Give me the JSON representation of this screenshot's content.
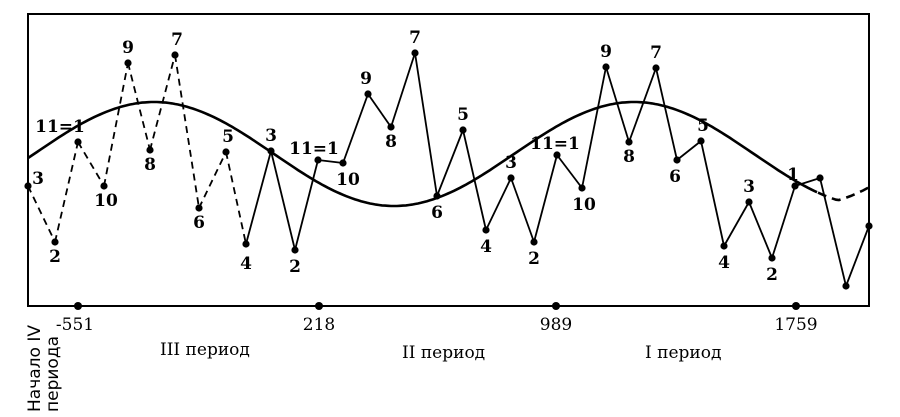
{
  "chart_data": {
    "type": "line",
    "x_ticks": [
      "-551",
      "218",
      "989",
      "1759"
    ],
    "start_label": [
      "Начало IV",
      "периода"
    ],
    "periods": [
      "III период",
      "II период",
      "I период"
    ],
    "points": [
      {
        "label": "3",
        "style": "dashed"
      },
      {
        "label": "2",
        "style": "dashed"
      },
      {
        "label": "11=1",
        "style": "dashed"
      },
      {
        "label": "10",
        "style": "dashed"
      },
      {
        "label": "9",
        "style": "dashed"
      },
      {
        "label": "8",
        "style": "dashed"
      },
      {
        "label": "7",
        "style": "dashed"
      },
      {
        "label": "6",
        "style": "dashed"
      },
      {
        "label": "5",
        "style": "dashed"
      },
      {
        "label": "4",
        "style": "solid"
      },
      {
        "label": "3",
        "style": "solid"
      },
      {
        "label": "2",
        "style": "solid"
      },
      {
        "label": "11=1",
        "style": "solid"
      },
      {
        "label": "10",
        "style": "solid"
      },
      {
        "label": "9",
        "style": "solid"
      },
      {
        "label": "8",
        "style": "solid"
      },
      {
        "label": "7",
        "style": "solid"
      },
      {
        "label": "6",
        "style": "solid"
      },
      {
        "label": "5",
        "style": "solid"
      },
      {
        "label": "4",
        "style": "solid"
      },
      {
        "label": "3",
        "style": "solid"
      },
      {
        "label": "2",
        "style": "solid"
      },
      {
        "label": "11=1",
        "style": "solid"
      },
      {
        "label": "10",
        "style": "solid"
      },
      {
        "label": "9",
        "style": "solid"
      },
      {
        "label": "8",
        "style": "solid"
      },
      {
        "label": "7",
        "style": "solid"
      },
      {
        "label": "6",
        "style": "solid"
      },
      {
        "label": "5",
        "style": "solid"
      },
      {
        "label": "4",
        "style": "solid"
      },
      {
        "label": "3",
        "style": "solid"
      },
      {
        "label": "2",
        "style": "solid"
      },
      {
        "label": "1",
        "style": "solid"
      },
      {
        "label": "",
        "style": "solid"
      },
      {
        "label": "",
        "style": "solid"
      },
      {
        "label": "",
        "style": "solid"
      }
    ],
    "smooth_curve": "sine wave; dashed continuation at right end"
  }
}
